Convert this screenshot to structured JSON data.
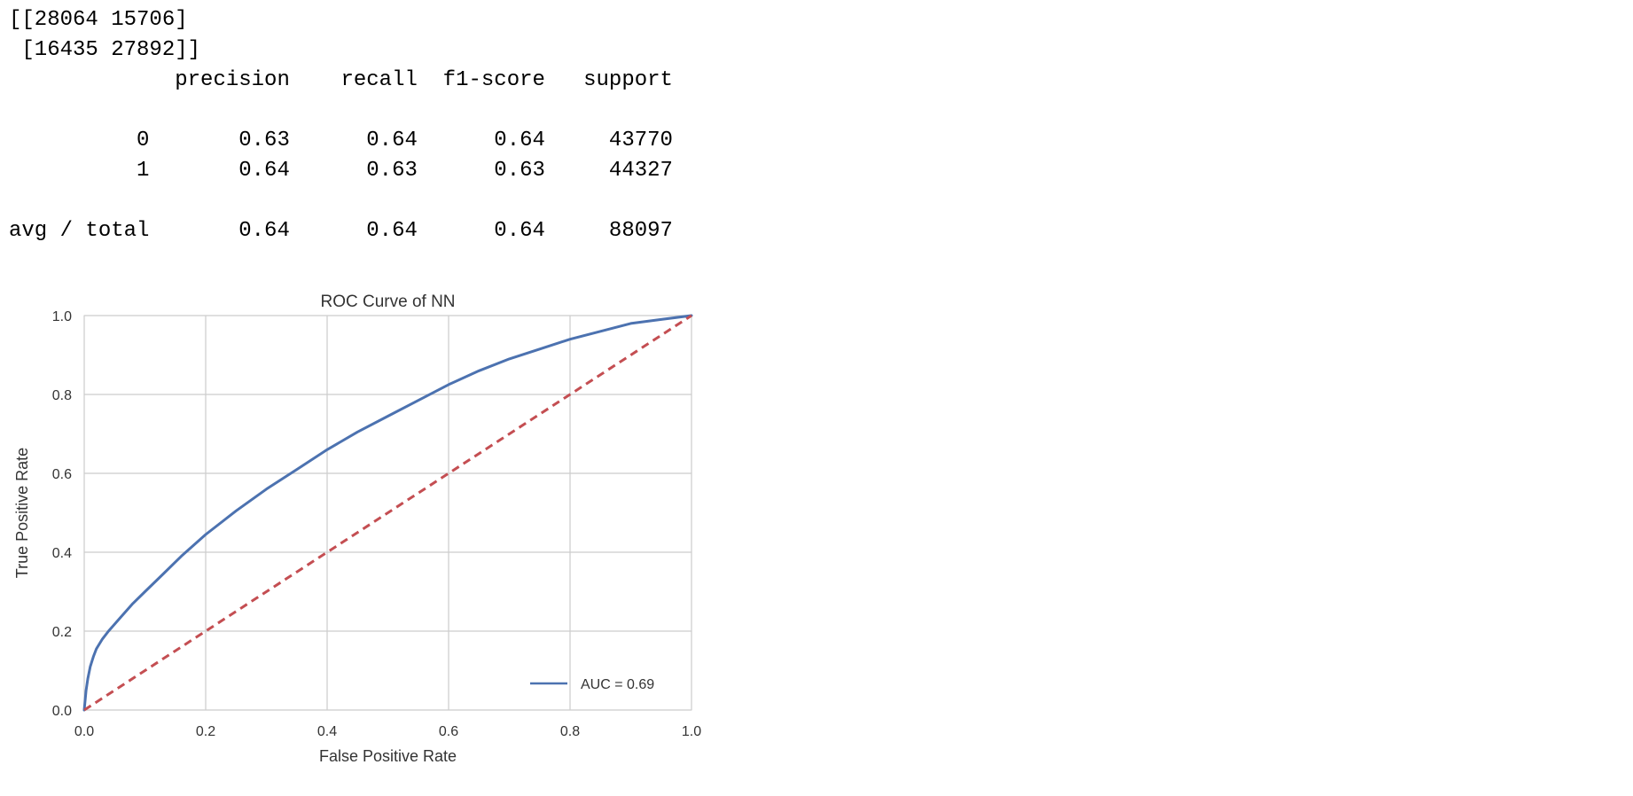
{
  "console": {
    "lines": [
      "[[28064 15706]",
      " [16435 27892]]",
      "             precision    recall  f1-score   support",
      "",
      "          0       0.63      0.64      0.64     43770",
      "          1       0.64      0.63      0.63     44327",
      "",
      "avg / total       0.64      0.64      0.64     88097"
    ]
  },
  "chart_data": {
    "type": "line",
    "title": "ROC Curve of NN",
    "xlabel": "False Positive Rate",
    "ylabel": "True Positive Rate",
    "xlim": [
      0,
      1
    ],
    "ylim": [
      0,
      1
    ],
    "x_ticks": [
      "0.0",
      "0.2",
      "0.4",
      "0.6",
      "0.8",
      "1.0"
    ],
    "y_ticks": [
      "0.0",
      "0.2",
      "0.4",
      "0.6",
      "0.8",
      "1.0"
    ],
    "grid": true,
    "legend_position": "lower-right",
    "series": [
      {
        "name": "AUC = 0.69",
        "color": "#4c72b0",
        "style": "solid",
        "x": [
          0,
          0.003,
          0.006,
          0.01,
          0.015,
          0.02,
          0.03,
          0.04,
          0.06,
          0.08,
          0.1,
          0.13,
          0.16,
          0.2,
          0.25,
          0.3,
          0.35,
          0.4,
          0.45,
          0.5,
          0.55,
          0.6,
          0.65,
          0.7,
          0.75,
          0.8,
          0.85,
          0.9,
          0.95,
          1.0
        ],
        "y": [
          0,
          0.05,
          0.08,
          0.11,
          0.135,
          0.155,
          0.18,
          0.2,
          0.235,
          0.27,
          0.3,
          0.345,
          0.39,
          0.445,
          0.505,
          0.56,
          0.61,
          0.66,
          0.705,
          0.745,
          0.785,
          0.825,
          0.86,
          0.89,
          0.915,
          0.94,
          0.96,
          0.98,
          0.99,
          1.0
        ]
      },
      {
        "name": "",
        "color": "#c44e52",
        "style": "dashed",
        "x": [
          0,
          1
        ],
        "y": [
          0,
          1
        ]
      }
    ]
  }
}
